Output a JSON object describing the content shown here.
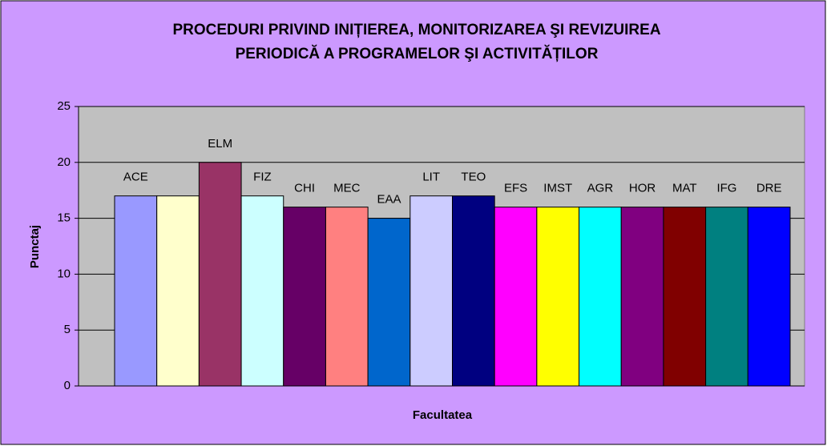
{
  "chart_data": {
    "type": "bar",
    "title": [
      "PROCEDURI PRIVIND INIȚIEREA, MONITORIZAREA ŞI REVIZUIREA",
      "PERIODICĂ A PROGRAMELOR ŞI ACTIVITĂȚILOR"
    ],
    "xlabel": "Facultatea",
    "ylabel": "Punctaj",
    "categories": [
      "ACE",
      null,
      "ELM",
      "FIZ",
      "CHI",
      "MEC",
      "EAA",
      "LIT",
      "TEO",
      "EFS",
      "IMST",
      "AGR",
      "HOR",
      "MAT",
      "IFG",
      "DRE"
    ],
    "values": [
      17,
      17,
      20,
      17,
      16,
      16,
      15,
      17,
      17,
      16,
      16,
      16,
      16,
      16,
      16,
      16
    ],
    "colors": [
      "#9999FF",
      "#FFFFCC",
      "#993366",
      "#CCFFFF",
      "#660066",
      "#FF8080",
      "#0066CC",
      "#CCCCFF",
      "#000080",
      "#FF00FF",
      "#FFFF00",
      "#00FFFF",
      "#800080",
      "#800000",
      "#008080",
      "#0000FF"
    ],
    "ylim": [
      0,
      25
    ],
    "yticks": [
      0,
      5,
      10,
      15,
      20,
      25
    ],
    "grid": true
  }
}
